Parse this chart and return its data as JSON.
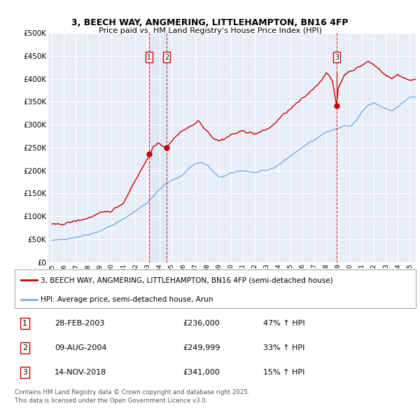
{
  "title_line1": "3, BEECH WAY, ANGMERING, LITTLEHAMPTON, BN16 4FP",
  "title_line2": "Price paid vs. HM Land Registry's House Price Index (HPI)",
  "background_color": "#ffffff",
  "plot_bg_color": "#e8eef8",
  "red_line_color": "#cc0000",
  "blue_line_color": "#7aaddc",
  "legend_label_red": "3, BEECH WAY, ANGMERING, LITTLEHAMPTON, BN16 4FP (semi-detached house)",
  "legend_label_blue": "HPI: Average price, semi-detached house, Arun",
  "transactions": [
    {
      "num": 1,
      "date": "28-FEB-2003",
      "price": 236000,
      "hpi_pct": "47% ↑ HPI",
      "year": 2003.15
    },
    {
      "num": 2,
      "date": "09-AUG-2004",
      "price": 249999,
      "hpi_pct": "33% ↑ HPI",
      "year": 2004.62
    },
    {
      "num": 3,
      "date": "14-NOV-2018",
      "price": 341000,
      "hpi_pct": "15% ↑ HPI",
      "year": 2018.87
    }
  ],
  "footer_line1": "Contains HM Land Registry data © Crown copyright and database right 2025.",
  "footer_line2": "This data is licensed under the Open Government Licence v3.0.",
  "ylim": [
    0,
    500000
  ],
  "yticks": [
    0,
    50000,
    100000,
    150000,
    200000,
    250000,
    300000,
    350000,
    400000,
    450000,
    500000
  ],
  "shade_between_1_2": true,
  "shade_color": "#dde8f5"
}
